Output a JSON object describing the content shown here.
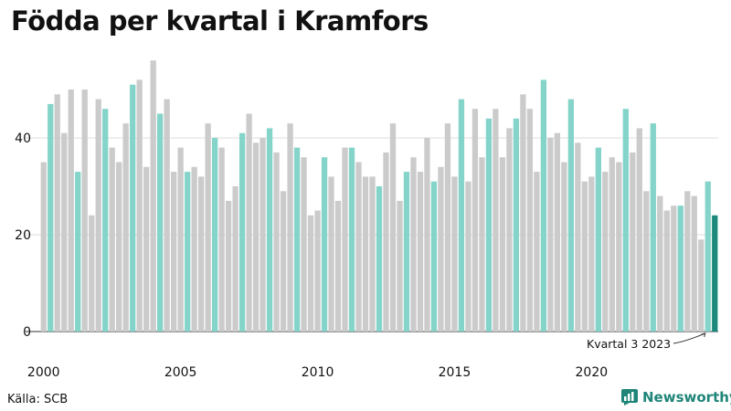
{
  "chart_data": {
    "type": "bar",
    "title": "Födda per kvartal i Kramfors",
    "source": "Källa: SCB",
    "brand": "Newsworthy",
    "annotation": "Kvartal 3 2023",
    "y_ticks": [
      0,
      20,
      40
    ],
    "ylim": [
      0,
      60
    ],
    "x_ticks": [
      "2000",
      "2005",
      "2010",
      "2015",
      "2020"
    ],
    "start_year": 2000,
    "colors": {
      "default": "#cbcbcb",
      "q2": "#84d4ca",
      "latest": "#1b8a7c"
    },
    "values": [
      35,
      47,
      49,
      41,
      50,
      33,
      50,
      24,
      48,
      46,
      38,
      35,
      43,
      51,
      52,
      34,
      56,
      45,
      48,
      33,
      38,
      33,
      34,
      32,
      43,
      40,
      38,
      27,
      30,
      41,
      45,
      39,
      40,
      42,
      37,
      29,
      43,
      38,
      36,
      24,
      25,
      36,
      32,
      27,
      38,
      38,
      35,
      32,
      32,
      30,
      37,
      43,
      27,
      33,
      36,
      33,
      40,
      31,
      34,
      43,
      32,
      48,
      31,
      46,
      36,
      44,
      46,
      36,
      42,
      44,
      49,
      46,
      33,
      52,
      40,
      41,
      35,
      48,
      39,
      31,
      32,
      38,
      33,
      36,
      35,
      46,
      37,
      42,
      29,
      43,
      28,
      25,
      26,
      26,
      29,
      28,
      19,
      31,
      24
    ]
  }
}
